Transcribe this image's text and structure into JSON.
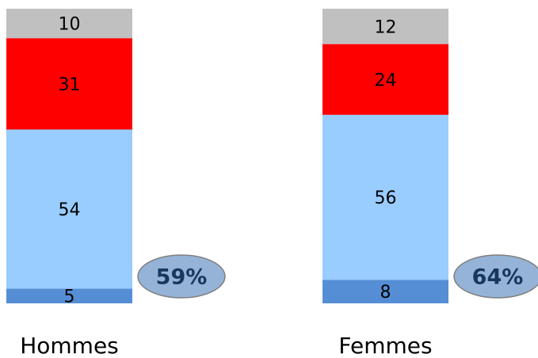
{
  "chart_data": {
    "type": "stacked_bar",
    "categories": [
      "Hommes",
      "Femmes"
    ],
    "series": [
      {
        "color": "#558ed5",
        "values": [
          5,
          8
        ]
      },
      {
        "color": "#99ccff",
        "values": [
          54,
          56
        ]
      },
      {
        "color": "#ff0000",
        "values": [
          31,
          24
        ]
      },
      {
        "color": "#c0c0c0",
        "values": [
          10,
          12
        ]
      }
    ],
    "annotations": [
      "59%",
      "64%"
    ]
  }
}
